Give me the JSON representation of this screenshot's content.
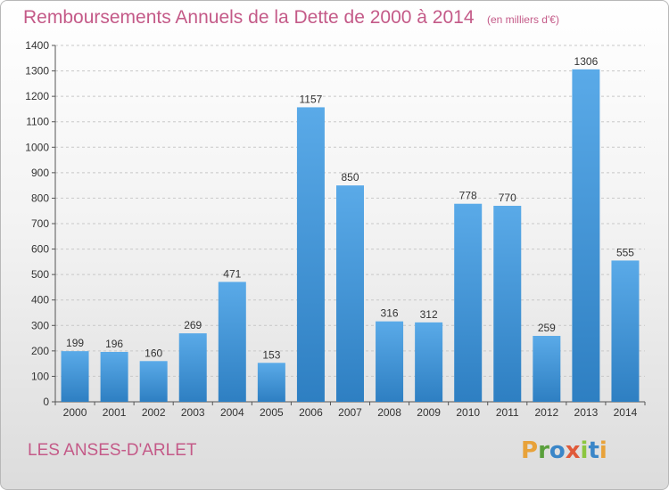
{
  "title": {
    "main": "Remboursements Annuels de la Dette de 2000 à 2014",
    "unit": "(en milliers d'€)"
  },
  "commune": "LES ANSES-D'ARLET",
  "logo": {
    "text": "Proxiti",
    "letter_colors": [
      "#e8a23a",
      "#5aa03c",
      "#3a86c8",
      "#e05a3a",
      "#8cc63f",
      "#3a86c8",
      "#e8a23a"
    ]
  },
  "colors": {
    "bar_top": "#5aaae8",
    "bar_bottom": "#2e7fc2",
    "grid": "#c8c8c8",
    "axis": "#555555",
    "accent": "#c45a88"
  },
  "chart_data": {
    "type": "bar",
    "title": "Remboursements Annuels de la Dette de 2000 à 2014",
    "xlabel": "",
    "ylabel": "",
    "ylim": [
      0,
      1400
    ],
    "yticks": [
      0,
      100,
      200,
      300,
      400,
      500,
      600,
      700,
      800,
      900,
      1000,
      1100,
      1200,
      1300,
      1400
    ],
    "grid": true,
    "categories": [
      "2000",
      "2001",
      "2002",
      "2003",
      "2004",
      "2005",
      "2006",
      "2007",
      "2008",
      "2009",
      "2010",
      "2011",
      "2012",
      "2013",
      "2014"
    ],
    "values": [
      199,
      196,
      160,
      269,
      471,
      153,
      1157,
      850,
      316,
      312,
      778,
      770,
      259,
      1306,
      555
    ]
  }
}
